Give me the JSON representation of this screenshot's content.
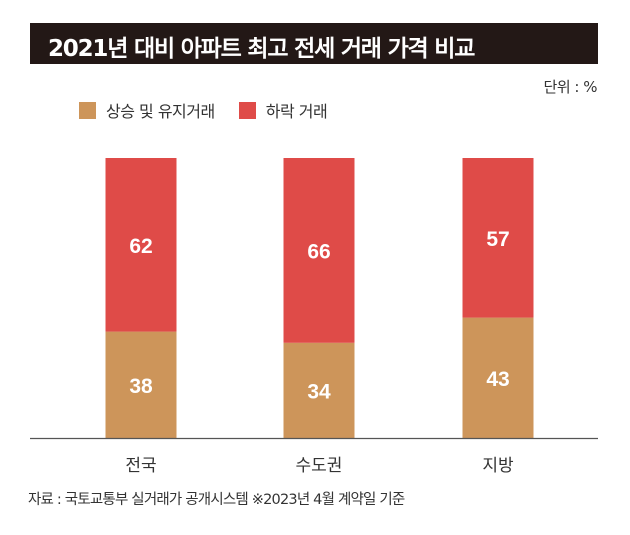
{
  "title": "2021년 대비 아파트 최고 전세 거래 가격 비교",
  "unit_label": "단위 : %",
  "source_note": "자료 : 국토교통부 실거래가 공개시스템 ※2023년 4월 계약일 기준",
  "colors": {
    "rise": "#CD955A",
    "fall": "#DF4B48",
    "title_bg": "#231816"
  },
  "chart_data": {
    "type": "bar",
    "stacked": true,
    "title": "2021년 대비 아파트 최고 전세 거래 가격 비교",
    "categories": [
      "전국",
      "수도권",
      "지방"
    ],
    "series": [
      {
        "name": "상승 및 유지거래",
        "values": [
          38,
          34,
          43
        ],
        "color": "#CD955A"
      },
      {
        "name": "하락 거래",
        "values": [
          62,
          66,
          57
        ],
        "color": "#DF4B48"
      }
    ],
    "ylim": [
      0,
      100
    ],
    "unit": "%",
    "legend_position": "top-left",
    "grid": false
  }
}
